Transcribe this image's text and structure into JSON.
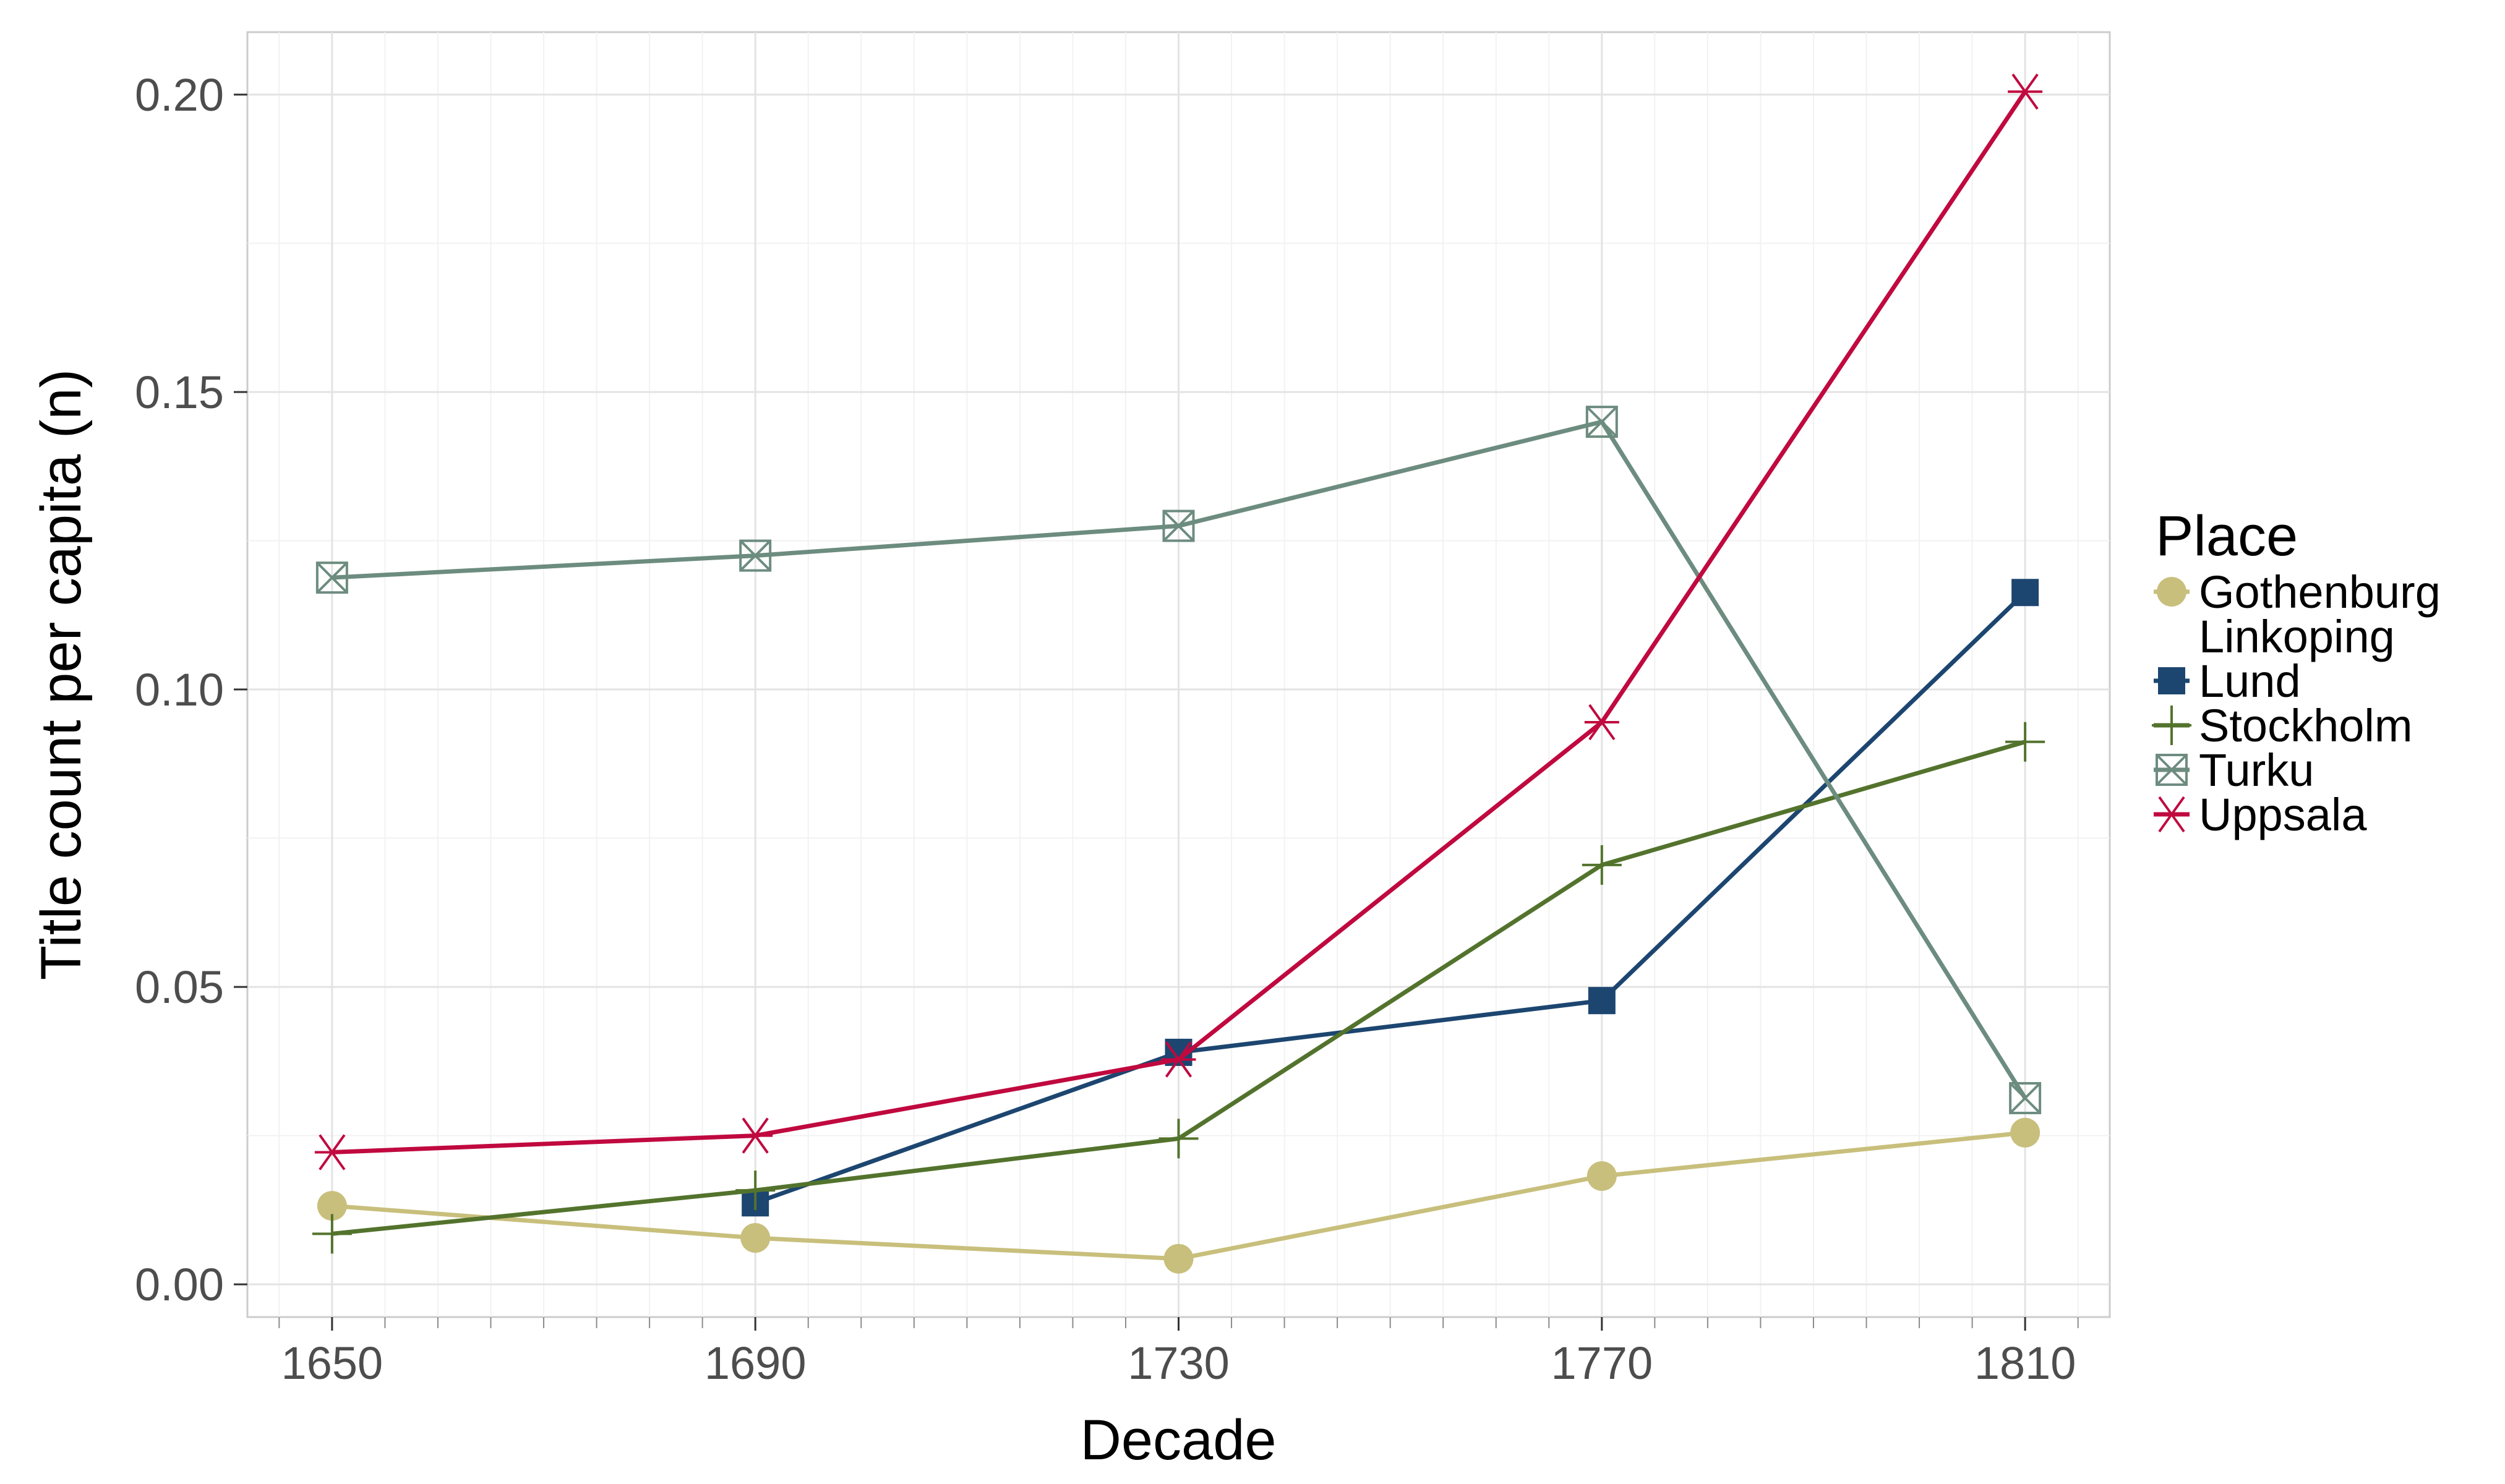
{
  "chart_data": {
    "type": "line",
    "title": "",
    "xlabel": "Decade",
    "ylabel": "Title count per capita (n)",
    "x_ticks": [
      "1650",
      "1690",
      "1730",
      "1770",
      "1810"
    ],
    "y_ticks": [
      "0.00",
      "0.05",
      "0.10",
      "0.15",
      "0.20"
    ],
    "xlim": [
      1642,
      1818
    ],
    "ylim": [
      -0.0055,
      0.2105
    ],
    "grid": true,
    "legend": {
      "title": "Place",
      "placement": "right",
      "entries": [
        "Gothenburg",
        "Linkoping",
        "Lund",
        "Stockholm",
        "Turku",
        "Uppsala"
      ]
    },
    "series": [
      {
        "name": "Gothenburg",
        "color": "#c8bf7c",
        "marker": "circle",
        "x": [
          1650,
          1690,
          1730,
          1770,
          1810
        ],
        "values": [
          0.0132,
          0.0078,
          0.0043,
          0.0182,
          0.0255
        ]
      },
      {
        "name": "Linkoping",
        "color": "#ffffff",
        "marker": "none",
        "x": [],
        "values": []
      },
      {
        "name": "Lund",
        "color": "#1c4670",
        "marker": "square",
        "x": [
          1690,
          1730,
          1770,
          1810
        ],
        "values": [
          0.0137,
          0.039,
          0.0477,
          0.1163
        ]
      },
      {
        "name": "Stockholm",
        "color": "#53732d",
        "marker": "plus",
        "x": [
          1650,
          1690,
          1730,
          1770,
          1810
        ],
        "values": [
          0.0085,
          0.0158,
          0.0245,
          0.0705,
          0.0912
        ]
      },
      {
        "name": "Turku",
        "color": "#6d8c80",
        "marker": "square-cross",
        "x": [
          1650,
          1690,
          1730,
          1770,
          1810
        ],
        "values": [
          0.1188,
          0.1225,
          0.1275,
          0.145,
          0.0313
        ]
      },
      {
        "name": "Uppsala",
        "color": "#c0093f",
        "marker": "asterisk",
        "x": [
          1650,
          1690,
          1730,
          1770,
          1810
        ],
        "values": [
          0.0222,
          0.025,
          0.0378,
          0.0945,
          0.2005
        ]
      }
    ]
  }
}
